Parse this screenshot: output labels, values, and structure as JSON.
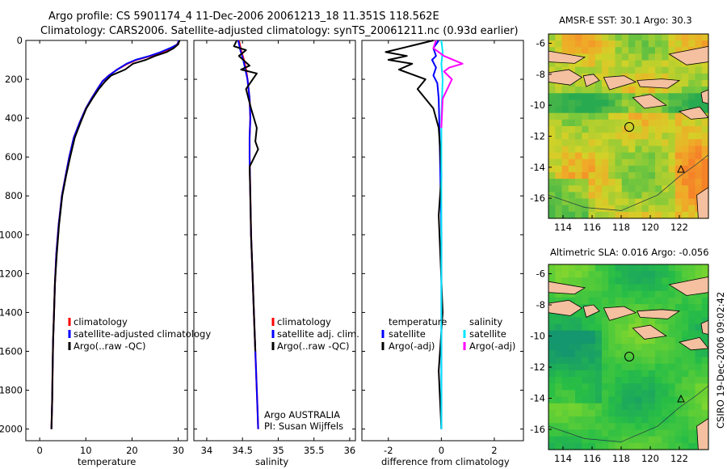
{
  "header": {
    "line1": "Argo profile: CS 5901174_4 11-Dec-2006 20061213_18 11.351S 118.562E",
    "line2": "Climatology: CARS2006. Satellite-adjusted climatology: synTS_20061211.nc (0.93d earlier)"
  },
  "footer_stamp": "CSIRO 19-Dec-2006 09:02:42",
  "colors": {
    "climatology": "#ff0000",
    "satellite": "#0000ff",
    "argo": "#000000",
    "sat_salinity": "#00e5ff",
    "argo_salinity_diff": "#ff00ff",
    "map_land": "#f4c0a0"
  },
  "chart_data": [
    {
      "type": "line",
      "xlabel": "temperature",
      "xticks": [
        "0",
        "10",
        "20",
        "30"
      ],
      "xlim": [
        -3,
        32
      ],
      "yticks": [
        "0",
        "200",
        "400",
        "600",
        "800",
        "1000",
        "1200",
        "1400",
        "1600",
        "1800",
        "2000"
      ],
      "ylim": [
        2060,
        0
      ],
      "legend": {
        "entries": [
          "climatology",
          "satellite-adjusted climatology",
          "Argo(..raw -QC)"
        ],
        "placement": "lower-right"
      },
      "series": [
        {
          "name": "climatology",
          "color": "#ff0000",
          "x": [
            30.2,
            29.8,
            28.5,
            26.5,
            24,
            21,
            19,
            16.8,
            15,
            13.6,
            12.5,
            11.2,
            10,
            8.7,
            7.4,
            6.4,
            5.6,
            4.8,
            4.1,
            3.6,
            3.3,
            3.1,
            2.9,
            2.8,
            2.7,
            2.55
          ],
          "y": [
            0,
            20,
            40,
            60,
            80,
            100,
            120,
            150,
            180,
            210,
            250,
            300,
            350,
            420,
            500,
            600,
            700,
            800,
            950,
            1100,
            1250,
            1400,
            1550,
            1700,
            1850,
            2000
          ]
        },
        {
          "name": "satellite-adjusted climatology",
          "color": "#0000ff",
          "x": [
            30.1,
            29.9,
            28.2,
            26.2,
            23.8,
            20.8,
            18.8,
            16.8,
            15,
            13.6,
            12.5,
            11.2,
            10,
            8.7,
            7.4,
            6.4,
            5.6,
            4.8,
            4.1,
            3.6,
            3.3,
            3.1,
            2.9,
            2.8,
            2.7,
            2.55
          ],
          "y": [
            0,
            20,
            40,
            60,
            80,
            100,
            120,
            150,
            180,
            210,
            250,
            300,
            350,
            420,
            500,
            600,
            700,
            800,
            950,
            1100,
            1250,
            1400,
            1550,
            1700,
            1850,
            2000
          ]
        },
        {
          "name": "Argo(..raw -QC)",
          "color": "#000000",
          "x": [
            30.3,
            30.0,
            29.0,
            27.5,
            25,
            23,
            20.2,
            18.5,
            15.5,
            14.2,
            12.8,
            11.4,
            10.1,
            8.9,
            7.6,
            6.6,
            5.7,
            4.9,
            4.2,
            3.7,
            3.3,
            3.1,
            2.9,
            2.8,
            2.7,
            2.55
          ],
          "y": [
            0,
            20,
            40,
            60,
            80,
            100,
            120,
            150,
            180,
            210,
            250,
            300,
            350,
            420,
            500,
            600,
            700,
            800,
            950,
            1100,
            1250,
            1400,
            1550,
            1700,
            1850,
            2000
          ]
        }
      ]
    },
    {
      "type": "line",
      "xlabel": "salinity",
      "xticks": [
        "34",
        "34.5",
        "35",
        "35.5",
        "36"
      ],
      "xlim": [
        33.82,
        36.08
      ],
      "ylim": [
        2060,
        0
      ],
      "legend": {
        "entries": [
          "climatology",
          "satellite adj. clim.",
          "Argo(..raw -QC)"
        ],
        "placement": "lower-right"
      },
      "annotation": [
        "Argo AUSTRALIA",
        "PI: Susan Wijffels"
      ],
      "series": [
        {
          "name": "climatology",
          "color": "#ff0000",
          "x": [
            34.45,
            34.48,
            34.52,
            34.55,
            34.57,
            34.6,
            34.61,
            34.6,
            34.6,
            34.61,
            34.62,
            34.64,
            34.66,
            34.68,
            34.7,
            34.71,
            34.72
          ],
          "y": [
            0,
            50,
            100,
            150,
            200,
            300,
            400,
            500,
            600,
            800,
            1000,
            1200,
            1400,
            1600,
            1800,
            1900,
            2000
          ]
        },
        {
          "name": "satellite adj. clim.",
          "color": "#0000ff",
          "x": [
            34.44,
            34.47,
            34.51,
            34.54,
            34.57,
            34.6,
            34.61,
            34.6,
            34.6,
            34.61,
            34.62,
            34.64,
            34.66,
            34.68,
            34.7,
            34.71,
            34.72
          ],
          "y": [
            0,
            50,
            100,
            150,
            200,
            300,
            400,
            500,
            600,
            800,
            1000,
            1200,
            1400,
            1600,
            1800,
            1900,
            2000
          ]
        },
        {
          "name": "Argo(..raw -QC)",
          "color": "#000000",
          "x": [
            34.42,
            34.38,
            34.55,
            34.45,
            34.6,
            34.48,
            34.7,
            34.55,
            34.62,
            34.7,
            34.68,
            34.72,
            34.6,
            34.61,
            34.62,
            34.64,
            34.66,
            34.68
          ],
          "y": [
            0,
            30,
            50,
            80,
            130,
            150,
            170,
            250,
            350,
            450,
            520,
            560,
            650,
            800,
            1000,
            1200,
            1400,
            1600
          ]
        }
      ]
    },
    {
      "type": "line",
      "xlabel": "difference from climatology",
      "xticks": [
        "-2",
        "0",
        "2"
      ],
      "xlim": [
        -3,
        3.1
      ],
      "ylim": [
        2060,
        0
      ],
      "legend": {
        "entries": [
          "temperature",
          "satellite",
          "Argo(-adj)",
          "salinity",
          "satellite",
          "Argo(-adj)"
        ],
        "placement": "lower-center"
      },
      "series": [
        {
          "name": "temperature satellite",
          "color": "#0000ff",
          "x": [
            -0.1,
            -0.3,
            -0.2,
            -0.35,
            -0.2,
            -0.3,
            -0.15,
            -0.1,
            -0.08,
            -0.05,
            0,
            0
          ],
          "y": [
            0,
            40,
            80,
            100,
            140,
            180,
            220,
            300,
            400,
            600,
            1000,
            2000
          ]
        },
        {
          "name": "temperature Argo(-adj)",
          "color": "#000000",
          "x": [
            -0.3,
            -1.2,
            -2.1,
            -1.3,
            -2.0,
            -1.1,
            -1.6,
            -0.6,
            -0.9,
            -0.3,
            -0.1,
            -0.05,
            0,
            -0.1,
            0.05,
            -0.1,
            0
          ],
          "y": [
            0,
            30,
            60,
            80,
            100,
            120,
            150,
            200,
            250,
            350,
            450,
            550,
            700,
            900,
            1400,
            1700,
            2000
          ]
        },
        {
          "name": "salinity satellite",
          "color": "#00e5ff",
          "x": [
            0.0,
            0.05,
            0,
            0.05,
            0,
            0,
            0,
            0
          ],
          "y": [
            0,
            60,
            120,
            200,
            400,
            800,
            1400,
            2000
          ]
        },
        {
          "name": "salinity Argo(-adj)",
          "color": "#ff00ff",
          "x": [
            -0.2,
            -0.3,
            0.1,
            0.8,
            0.3,
            0.1,
            0.4,
            0.05,
            0
          ],
          "y": [
            0,
            40,
            80,
            120,
            140,
            160,
            200,
            300,
            450
          ]
        }
      ]
    },
    {
      "type": "heatmap",
      "title": "AMSR-E SST: 30.1 Argo: 30.3",
      "xticks": [
        "114",
        "116",
        "118",
        "120",
        "122"
      ],
      "yticks": [
        "-6",
        "-8",
        "-10",
        "-12",
        "-14",
        "-16"
      ],
      "xlim": [
        113,
        124
      ],
      "ylim": [
        -17.3,
        -5.4
      ]
    },
    {
      "type": "heatmap",
      "title": "Altimetric SLA: 0.016 Argo: -0.056",
      "xticks": [
        "114",
        "116",
        "118",
        "120",
        "122"
      ],
      "yticks": [
        "-6",
        "-8",
        "-10",
        "-12",
        "-14",
        "-16"
      ],
      "xlim": [
        113,
        124
      ],
      "ylim": [
        -17.3,
        -5.4
      ]
    }
  ]
}
